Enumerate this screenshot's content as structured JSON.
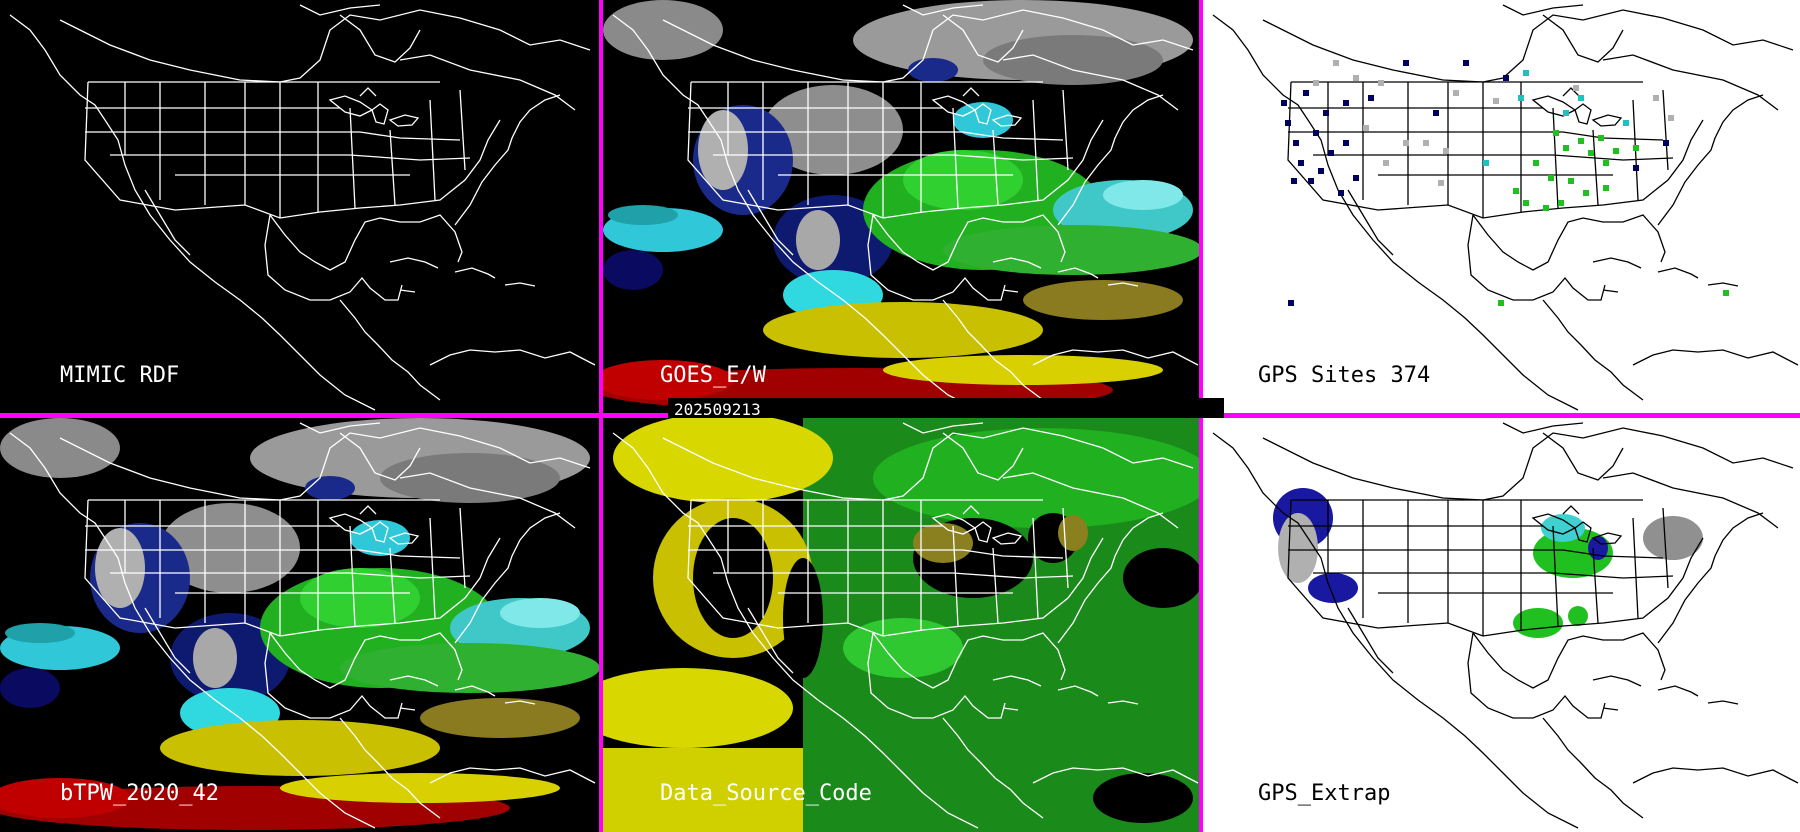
{
  "panels": [
    {
      "label": "MIMIC RDF",
      "background": "#000000",
      "label_color": "#ffffff"
    },
    {
      "label": "GOES_E/W",
      "background": "#000000",
      "label_color": "#ffffff"
    },
    {
      "label": "GPS Sites   374",
      "background": "#ffffff",
      "label_color": "#000000"
    },
    {
      "label": "bTPW_2020_42",
      "background": "#000000",
      "label_color": "#ffffff"
    },
    {
      "label": "Data_Source_Code",
      "background": "#000000",
      "label_color": "#ffffff"
    },
    {
      "label": "GPS_Extrap",
      "background": "#ffffff",
      "label_color": "#000000"
    }
  ],
  "timestamp": "202509213",
  "colors": {
    "divider": "#ff00ff",
    "tpw_scale": [
      "#7a0000",
      "#d00000",
      "#e8e000",
      "#8a8a10",
      "#20c020",
      "#40e040",
      "#40e0e0",
      "#1020a0",
      "#0a0a60",
      "#909090",
      "#d0d0d0"
    ],
    "gps_site_colors": [
      "#000060",
      "#1818a0",
      "#b0b0b0",
      "#20c0c0",
      "#20c020"
    ]
  }
}
